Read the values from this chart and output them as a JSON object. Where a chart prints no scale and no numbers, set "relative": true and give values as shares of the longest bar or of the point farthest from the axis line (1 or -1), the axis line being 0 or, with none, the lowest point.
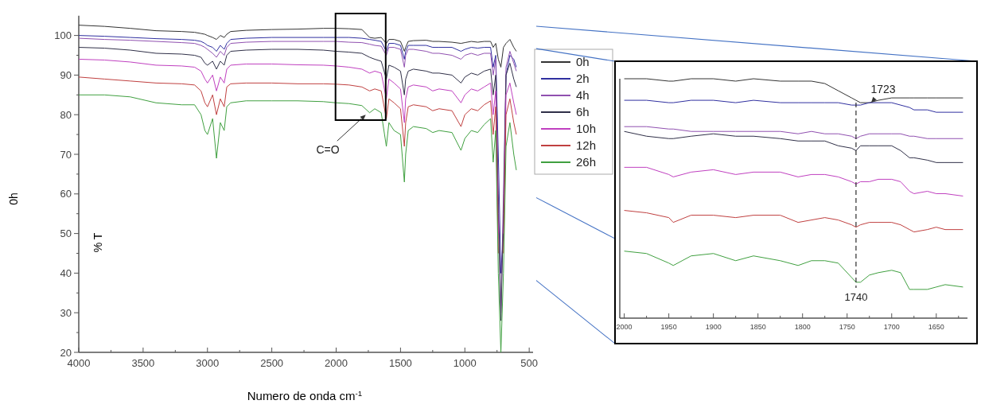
{
  "chart_data": [
    {
      "type": "line",
      "xlabel": "Numero de onda cm$^{-1}$",
      "ylabel": "0h",
      "legend": "right",
      "line_style": "solid",
      "annotations": [
        "% T",
        {
          "text": "C=O",
          "x": 1770,
          "y": 80
        }
      ],
      "xlim": [
        4000,
        470
      ],
      "ylim": [
        20,
        105
      ],
      "xticks": [
        4000,
        {
          "value": 3750,
          "label": null
        },
        3500,
        {
          "value": 3250,
          "label": null
        },
        3000,
        {
          "value": 2750,
          "label": null
        },
        2500,
        {
          "value": 2250,
          "label": null
        },
        2000,
        {
          "value": 1750,
          "label": null
        },
        1500,
        {
          "value": 1250,
          "label": null
        },
        1000,
        {
          "value": 750,
          "label": null
        },
        500
      ],
      "yticks": [
        20,
        {
          "value": 25,
          "label": null
        },
        30,
        {
          "value": 35,
          "label": null
        },
        40,
        {
          "value": 45,
          "label": null
        },
        50,
        {
          "value": 55,
          "label": null
        },
        60,
        {
          "value": 65,
          "label": null
        },
        70,
        {
          "value": 75,
          "label": null
        },
        80,
        {
          "value": 85,
          "label": null
        },
        90,
        {
          "value": 95,
          "label": null
        },
        100
      ],
      "x": [
        4000,
        3800,
        3600,
        3400,
        3200,
        3100,
        3050,
        3020,
        3000,
        2960,
        2930,
        2900,
        2870,
        2850,
        2820,
        2700,
        2500,
        2300,
        2100,
        2000,
        1900,
        1800,
        1740,
        1700,
        1650,
        1610,
        1590,
        1550,
        1500,
        1470,
        1460,
        1440,
        1400,
        1300,
        1250,
        1200,
        1100,
        1030,
        1000,
        950,
        900,
        850,
        800,
        780,
        760,
        740,
        720,
        700,
        680,
        650,
        620,
        600
      ],
      "series": [
        {
          "name": "0h",
          "color": "#333333",
          "values": [
            102.6,
            102.3,
            101.8,
            101.2,
            101.0,
            100.8,
            100.5,
            100.3,
            100.0,
            99.5,
            99.0,
            100.0,
            99.5,
            100.3,
            101.0,
            101.3,
            101.5,
            101.6,
            101.8,
            101.8,
            101.7,
            101.5,
            99.5,
            99.3,
            99.5,
            98.0,
            99.0,
            99.0,
            98.5,
            96.0,
            97.0,
            98.5,
            98.7,
            98.8,
            98.5,
            98.5,
            98.3,
            98.0,
            98.2,
            98.5,
            98.3,
            98.5,
            98.5,
            97.0,
            98.0,
            94.0,
            92.0,
            97.0,
            98.0,
            99.0,
            97.0,
            96.0
          ]
        },
        {
          "name": "2h",
          "color": "#3030a0",
          "values": [
            100.0,
            99.8,
            99.5,
            99.2,
            99.0,
            98.8,
            98.5,
            98.0,
            97.5,
            97.0,
            96.0,
            97.5,
            96.5,
            98.0,
            99.0,
            99.3,
            99.5,
            99.5,
            99.5,
            99.5,
            99.5,
            99.3,
            99.0,
            98.8,
            98.5,
            96.0,
            98.0,
            98.0,
            97.5,
            94.0,
            96.0,
            97.5,
            97.5,
            97.5,
            97.0,
            97.0,
            97.0,
            96.0,
            96.5,
            97.0,
            96.8,
            97.0,
            97.0,
            92.0,
            95.0,
            70.0,
            40.0,
            50.0,
            90.0,
            95.0,
            94.0,
            92.0
          ]
        },
        {
          "name": "4h",
          "color": "#9050b0",
          "values": [
            99.3,
            99.0,
            98.8,
            98.5,
            98.2,
            98.0,
            97.5,
            97.0,
            96.5,
            95.5,
            94.5,
            96.0,
            95.0,
            97.0,
            98.0,
            98.3,
            98.5,
            98.5,
            98.5,
            98.5,
            98.3,
            98.2,
            97.8,
            97.5,
            97.3,
            95.0,
            97.0,
            97.0,
            96.5,
            92.0,
            95.0,
            96.5,
            96.5,
            96.0,
            95.5,
            95.5,
            95.0,
            94.0,
            95.0,
            95.5,
            95.0,
            95.5,
            95.5,
            90.0,
            94.0,
            60.0,
            30.0,
            60.0,
            92.0,
            96.0,
            93.0,
            91.0
          ]
        },
        {
          "name": "6h",
          "color": "#303048",
          "values": [
            97.0,
            96.8,
            96.3,
            95.5,
            95.3,
            95.0,
            94.5,
            93.0,
            92.5,
            93.5,
            91.5,
            93.5,
            92.5,
            95.0,
            96.0,
            96.3,
            96.5,
            96.5,
            96.3,
            96.0,
            95.8,
            95.5,
            94.5,
            94.0,
            93.5,
            89.0,
            92.5,
            92.0,
            91.0,
            85.0,
            89.0,
            91.0,
            91.5,
            91.0,
            90.5,
            90.5,
            90.0,
            88.0,
            89.5,
            90.5,
            90.0,
            91.0,
            91.5,
            85.0,
            90.0,
            55.0,
            28.0,
            55.0,
            90.0,
            93.0,
            89.0,
            87.0
          ]
        },
        {
          "name": "10h",
          "color": "#c040c0",
          "values": [
            94.0,
            93.8,
            93.3,
            92.5,
            92.3,
            92.0,
            91.0,
            89.0,
            88.0,
            90.0,
            86.0,
            89.5,
            88.0,
            91.5,
            92.5,
            92.8,
            92.8,
            92.6,
            92.5,
            92.3,
            92.0,
            91.5,
            90.5,
            91.0,
            90.5,
            84.0,
            89.0,
            88.0,
            86.5,
            78.0,
            84.0,
            87.0,
            87.5,
            87.0,
            86.0,
            86.5,
            86.0,
            83.0,
            85.0,
            86.5,
            86.0,
            87.0,
            88.0,
            80.0,
            86.0,
            50.0,
            null,
            50.0,
            85.0,
            88.0,
            83.0,
            80.0
          ]
        },
        {
          "name": "12h",
          "color": "#c04040",
          "values": [
            89.5,
            89.0,
            88.5,
            88.0,
            87.8,
            87.5,
            86.0,
            83.0,
            82.0,
            85.0,
            80.0,
            84.0,
            82.0,
            87.0,
            87.8,
            88.0,
            88.0,
            87.8,
            87.8,
            87.7,
            87.5,
            87.0,
            86.0,
            86.5,
            86.0,
            79.0,
            84.0,
            83.0,
            81.5,
            72.0,
            78.0,
            82.0,
            82.5,
            82.0,
            81.0,
            81.5,
            81.0,
            77.0,
            80.0,
            81.5,
            81.0,
            82.5,
            83.5,
            75.0,
            82.0,
            45.0,
            null,
            45.0,
            80.0,
            84.0,
            78.0,
            75.0
          ]
        },
        {
          "name": "26h",
          "color": "#40a040",
          "values": [
            85.0,
            85.0,
            84.5,
            83.0,
            82.5,
            82.5,
            80.0,
            76.0,
            75.0,
            79.0,
            69.0,
            78.0,
            76.0,
            82.0,
            83.0,
            83.5,
            83.5,
            83.5,
            83.3,
            83.0,
            82.8,
            82.3,
            80.5,
            81.5,
            80.5,
            72.0,
            78.0,
            76.0,
            75.0,
            63.0,
            70.0,
            76.0,
            77.0,
            76.5,
            75.5,
            76.0,
            75.5,
            71.0,
            74.0,
            76.0,
            75.5,
            77.5,
            79.0,
            68.0,
            76.0,
            40.0,
            20.0,
            40.0,
            72.0,
            78.0,
            70.0,
            66.0
          ]
        }
      ]
    },
    {
      "type": "line",
      "relative": true,
      "tick_labels": "x",
      "line_style": "solid",
      "annotations": [
        {
          "text": "1723",
          "x": 1723,
          "y": 0.9
        }
      ],
      "ref_lines": [
        {
          "axis": "x",
          "value": 1740,
          "label": "1740",
          "color": "#000000",
          "line_style": "dashed"
        }
      ],
      "xlim": [
        2005,
        1615
      ],
      "xticks": [
        2000,
        {
          "value": 1975,
          "label": null
        },
        1950,
        {
          "value": 1925,
          "label": null
        },
        1900,
        {
          "value": 1875,
          "label": null
        },
        1850,
        {
          "value": 1825,
          "label": null
        },
        1800,
        {
          "value": 1775,
          "label": null
        },
        1750,
        {
          "value": 1725,
          "label": null
        },
        1700,
        {
          "value": 1675,
          "label": null
        },
        1650,
        {
          "value": 1625,
          "label": null
        }
      ],
      "x": [
        2000,
        1975,
        1950,
        1945,
        1925,
        1900,
        1875,
        1855,
        1825,
        1805,
        1790,
        1775,
        1760,
        1745,
        1740,
        1735,
        1725,
        1715,
        1700,
        1690,
        1680,
        1675,
        1660,
        1650,
        1640,
        1620
      ],
      "series": [
        {
          "color": "#333333",
          "values": [
            1.0,
            1.0,
            0.99,
            0.99,
            1.0,
            1.0,
            0.99,
            1.0,
            0.99,
            0.99,
            0.99,
            0.98,
            0.95,
            0.92,
            0.91,
            0.9,
            0.9,
            0.91,
            0.92,
            0.92,
            0.92,
            0.92,
            0.92,
            0.92,
            0.92,
            0.92
          ]
        },
        {
          "color": "#3030a0",
          "values": [
            0.91,
            0.91,
            0.9,
            0.9,
            0.91,
            0.91,
            0.9,
            0.91,
            0.9,
            0.9,
            0.9,
            0.9,
            0.9,
            0.89,
            0.89,
            0.89,
            0.9,
            0.9,
            0.9,
            0.89,
            0.88,
            0.87,
            0.87,
            0.86,
            0.86,
            0.86
          ]
        },
        {
          "color": "#9050b0",
          "values": [
            0.8,
            0.8,
            0.79,
            0.79,
            0.78,
            0.78,
            0.78,
            0.78,
            0.78,
            0.77,
            0.78,
            0.77,
            0.77,
            0.76,
            0.75,
            0.76,
            0.77,
            0.77,
            0.77,
            0.77,
            0.76,
            0.76,
            0.75,
            0.75,
            0.75,
            0.75
          ]
        },
        {
          "color": "#303048",
          "values": [
            0.78,
            0.76,
            0.75,
            0.75,
            0.76,
            0.77,
            0.76,
            0.76,
            0.75,
            0.74,
            0.74,
            0.74,
            0.72,
            0.71,
            0.7,
            0.72,
            0.72,
            0.72,
            0.72,
            0.7,
            0.67,
            0.67,
            0.66,
            0.65,
            0.65,
            0.65
          ]
        },
        {
          "color": "#c040c0",
          "values": [
            0.63,
            0.63,
            0.6,
            0.59,
            0.61,
            0.62,
            0.6,
            0.61,
            0.61,
            0.59,
            0.6,
            0.6,
            0.59,
            0.57,
            0.56,
            0.57,
            0.57,
            0.58,
            0.58,
            0.57,
            0.53,
            0.52,
            0.53,
            0.52,
            0.52,
            0.51
          ]
        },
        {
          "color": "#c04040",
          "values": [
            0.45,
            0.44,
            0.42,
            0.4,
            0.43,
            0.43,
            0.42,
            0.43,
            0.43,
            0.4,
            0.41,
            0.42,
            0.41,
            0.39,
            0.38,
            0.39,
            0.4,
            0.4,
            0.4,
            0.39,
            0.37,
            0.36,
            0.37,
            0.38,
            0.37,
            0.37
          ]
        },
        {
          "color": "#40a040",
          "values": [
            0.28,
            0.27,
            0.23,
            0.22,
            0.26,
            0.27,
            0.24,
            0.26,
            0.24,
            0.22,
            0.24,
            0.24,
            0.23,
            0.17,
            0.15,
            0.15,
            0.18,
            0.19,
            0.2,
            0.19,
            0.12,
            0.12,
            0.12,
            0.13,
            0.14,
            0.13
          ]
        }
      ]
    }
  ]
}
